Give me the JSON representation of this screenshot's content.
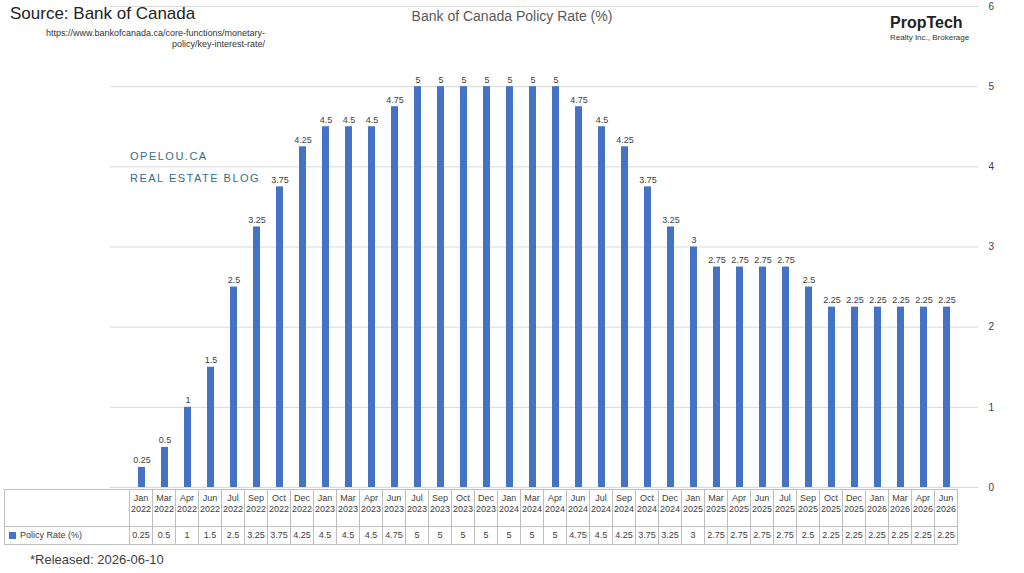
{
  "chart_data": {
    "type": "bar",
    "title": "Bank of Canada Policy Rate (%)",
    "source": "Source: Bank of Canada",
    "source_url": "https://www.bankofcanada.ca/core-functions/monetary-policy/key-interest-rate/",
    "annotations": [
      "OPELOU.CA",
      "REAL ESTATE BLOG"
    ],
    "logo": [
      "PropTech",
      "Realty Inc., Brokerage"
    ],
    "note": "*Released: 2026-06-10",
    "categories": [
      "Jan 2022",
      "Mar 2022",
      "Apr 2022",
      "Jun 2022",
      "Jul 2022",
      "Sep 2022",
      "Oct 2022",
      "Dec 2022",
      "Jan 2023",
      "Mar 2023",
      "Apr 2023",
      "Jun 2023",
      "Jul 2023",
      "Sep 2023",
      "Oct 2023",
      "Dec 2023",
      "Jan 2024",
      "Mar 2024",
      "Apr 2024",
      "Jun 2024",
      "Jul 2024",
      "Sep 2024",
      "Oct 2024",
      "Dec 2024",
      "Jan 2025",
      "Mar 2025",
      "Apr 2025",
      "Jun 2025",
      "Jul 2025",
      "Sep 2025",
      "Oct 2025",
      "Dec 2025",
      "Jan 2026",
      "Mar 2026",
      "Apr 2026",
      "Jun 2026"
    ],
    "series": [
      {
        "name": "Policy Rate (%)",
        "color": "#4472c4",
        "values": [
          0.25,
          0.5,
          1,
          1.5,
          2.5,
          3.25,
          3.75,
          4.25,
          4.5,
          4.5,
          4.5,
          4.75,
          5,
          5,
          5,
          5,
          5,
          5,
          5,
          4.75,
          4.5,
          4.25,
          3.75,
          3.25,
          3,
          2.75,
          2.75,
          2.75,
          2.75,
          2.5,
          2.25,
          2.25,
          2.25,
          2.25,
          2.25,
          2.25
        ]
      }
    ],
    "ylim": [
      0,
      6
    ],
    "yticks": [
      0,
      1,
      2,
      3,
      4,
      5,
      6
    ],
    "grid": true,
    "data_labels": true,
    "legend": "bottom"
  }
}
